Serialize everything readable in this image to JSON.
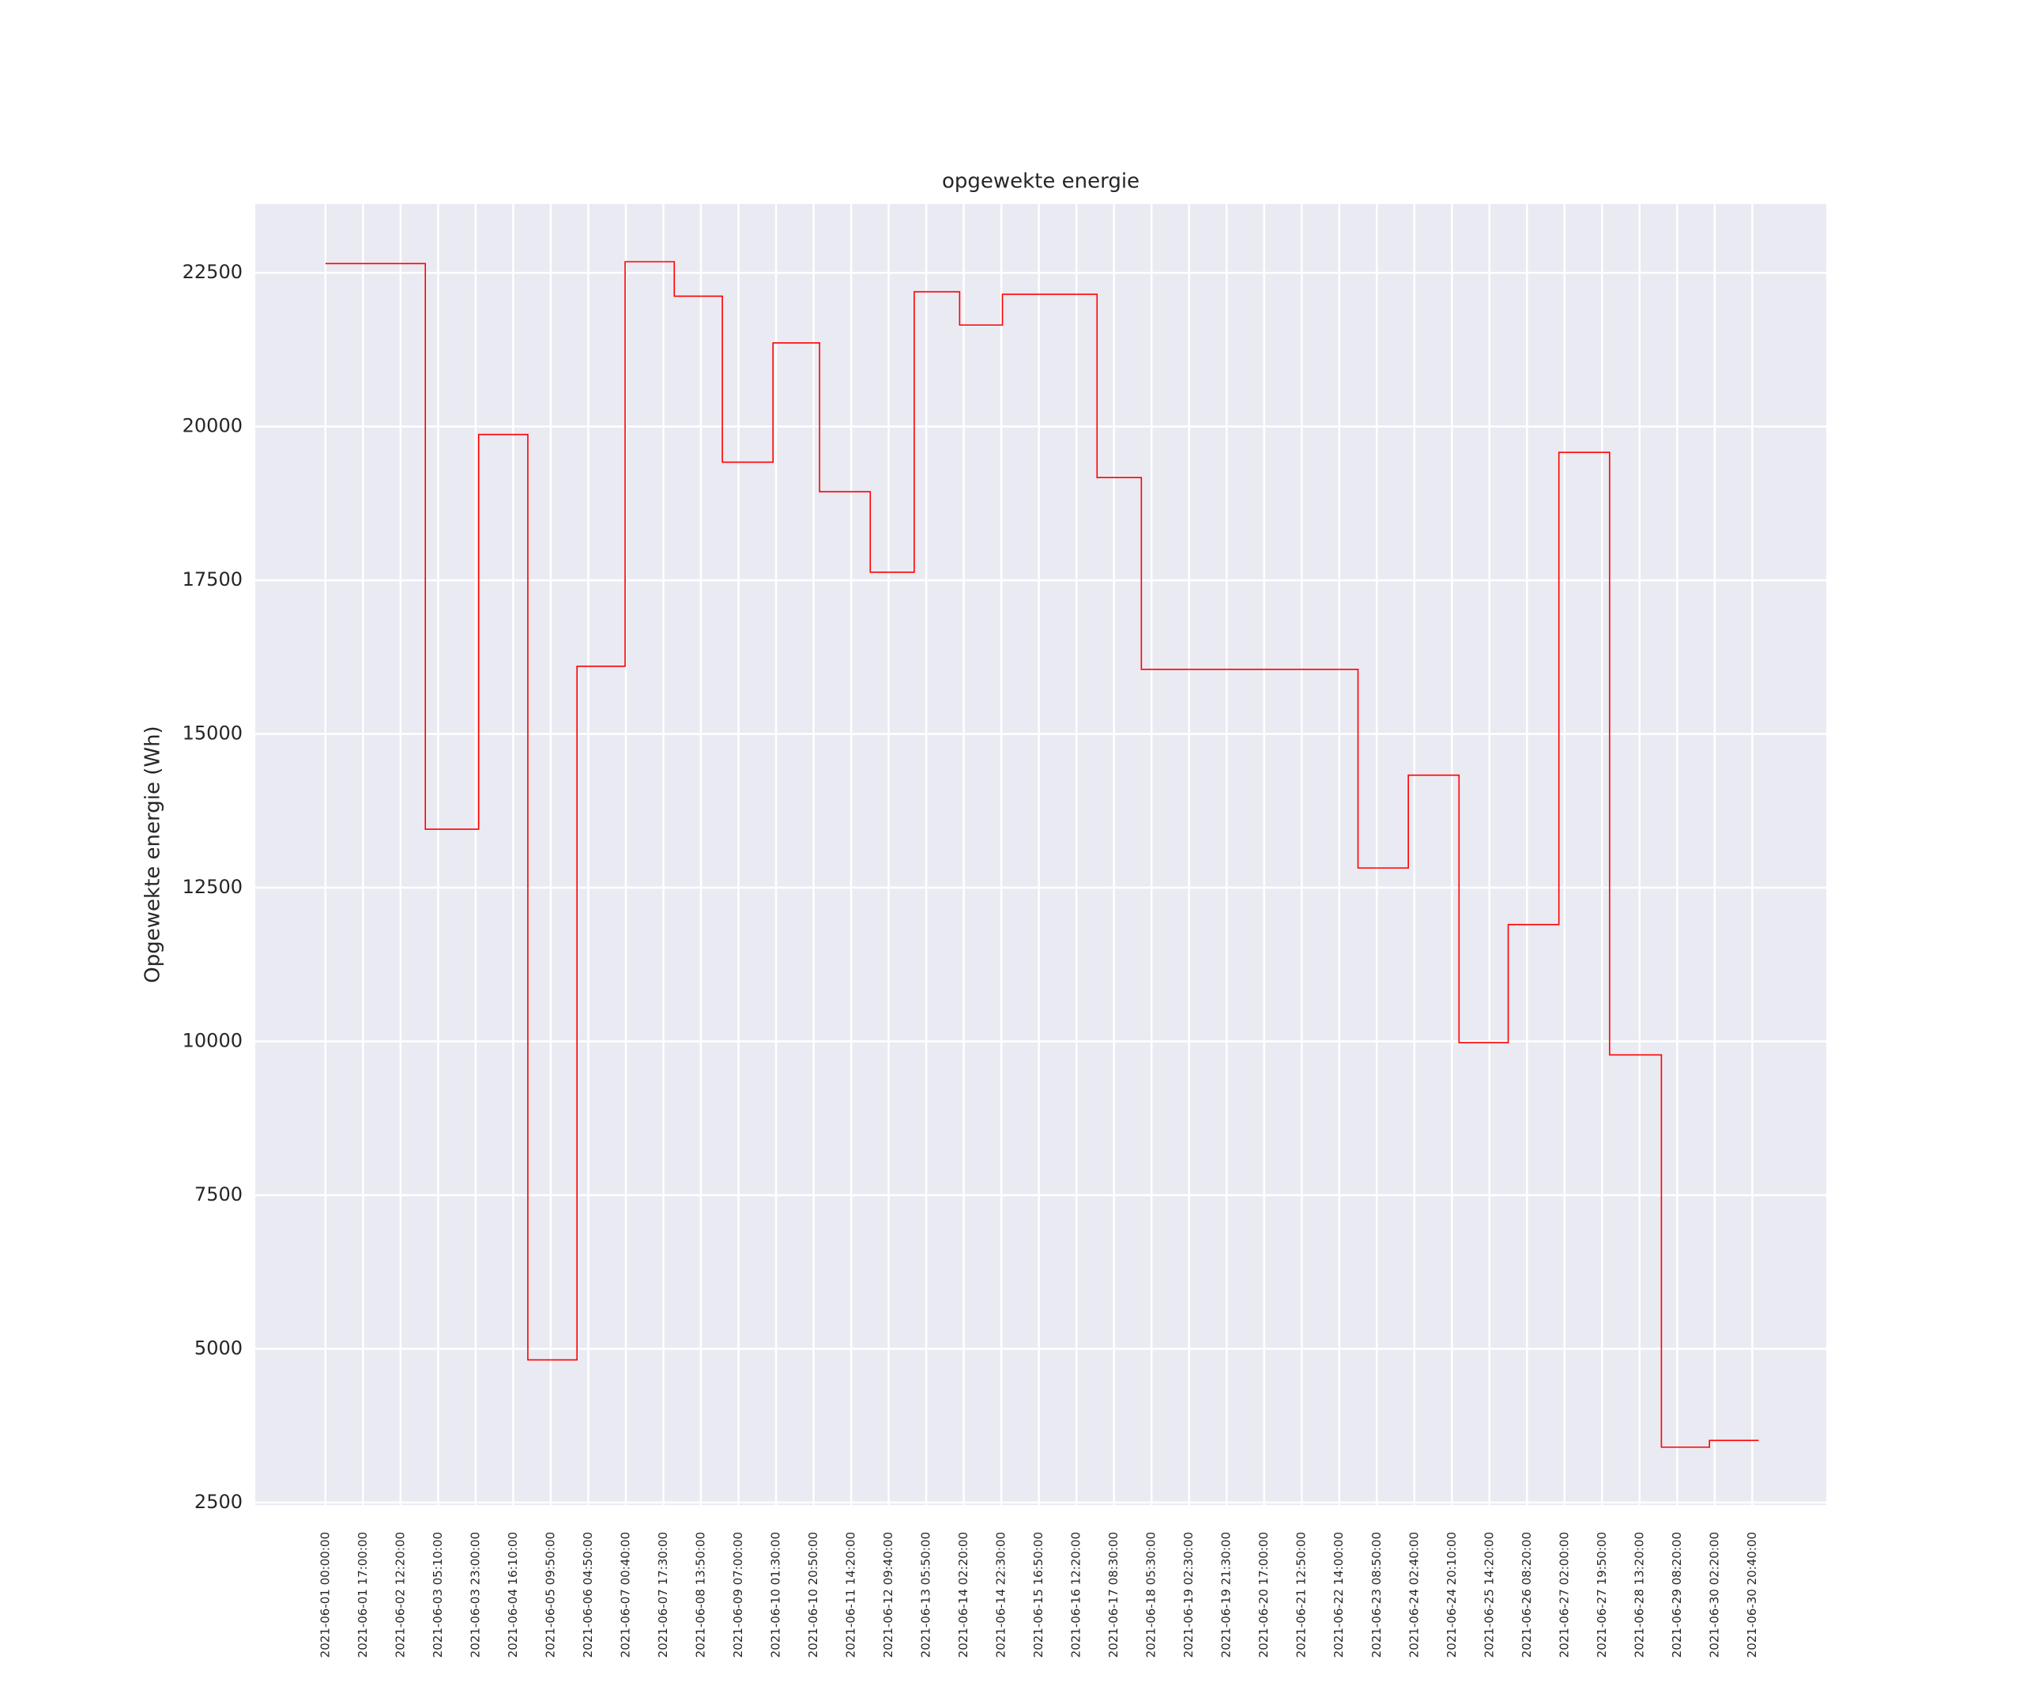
{
  "chart_data": {
    "type": "line",
    "step": "post",
    "title": "opgewekte energie",
    "ylabel": "Opgewekte energie (Wh)",
    "series": [
      {
        "name": "opgewekte energie",
        "color": "#ff0000",
        "x": [
          0,
          2.66,
          4.08,
          5.39,
          6.7,
          7.98,
          9.29,
          10.57,
          11.92,
          13.16,
          14.51,
          15.68,
          16.89,
          18.03,
          20.55,
          21.73,
          27.5,
          28.84,
          30.19,
          31.5,
          32.85,
          34.2,
          35.58,
          36.86,
          38.17
        ],
        "values": [
          22650,
          13450,
          19870,
          4820,
          16100,
          22680,
          22120,
          19420,
          21360,
          18940,
          17630,
          22190,
          21650,
          22150,
          19170,
          16050,
          12820,
          14330,
          9980,
          11900,
          19580,
          9780,
          3400,
          3510,
          3510
        ]
      }
    ],
    "xlim": [
      -1.87,
      39.97
    ],
    "xticks": [
      {
        "value": 0,
        "label": "2021-06-01 00:00:00"
      },
      {
        "value": 1,
        "label": "2021-06-01 17:00:00"
      },
      {
        "value": 2,
        "label": "2021-06-02 12:20:00"
      },
      {
        "value": 3,
        "label": "2021-06-03 05:10:00"
      },
      {
        "value": 4,
        "label": "2021-06-03 23:00:00"
      },
      {
        "value": 5,
        "label": "2021-06-04 16:10:00"
      },
      {
        "value": 6,
        "label": "2021-06-05 09:50:00"
      },
      {
        "value": 7,
        "label": "2021-06-06 04:50:00"
      },
      {
        "value": 8,
        "label": "2021-06-07 00:40:00"
      },
      {
        "value": 9,
        "label": "2021-06-07 17:30:00"
      },
      {
        "value": 10,
        "label": "2021-06-08 13:50:00"
      },
      {
        "value": 11,
        "label": "2021-06-09 07:00:00"
      },
      {
        "value": 12,
        "label": "2021-06-10 01:30:00"
      },
      {
        "value": 13,
        "label": "2021-06-10 20:50:00"
      },
      {
        "value": 14,
        "label": "2021-06-11 14:20:00"
      },
      {
        "value": 15,
        "label": "2021-06-12 09:40:00"
      },
      {
        "value": 16,
        "label": "2021-06-13 05:50:00"
      },
      {
        "value": 17,
        "label": "2021-06-14 02:20:00"
      },
      {
        "value": 18,
        "label": "2021-06-14 22:30:00"
      },
      {
        "value": 19,
        "label": "2021-06-15 16:50:00"
      },
      {
        "value": 20,
        "label": "2021-06-16 12:20:00"
      },
      {
        "value": 21,
        "label": "2021-06-17 08:30:00"
      },
      {
        "value": 22,
        "label": "2021-06-18 05:30:00"
      },
      {
        "value": 23,
        "label": "2021-06-19 02:30:00"
      },
      {
        "value": 24,
        "label": "2021-06-19 21:30:00"
      },
      {
        "value": 25,
        "label": "2021-06-20 17:00:00"
      },
      {
        "value": 26,
        "label": "2021-06-21 12:50:00"
      },
      {
        "value": 27,
        "label": "2021-06-22 14:00:00"
      },
      {
        "value": 28,
        "label": "2021-06-23 08:50:00"
      },
      {
        "value": 29,
        "label": "2021-06-24 02:40:00"
      },
      {
        "value": 30,
        "label": "2021-06-24 20:10:00"
      },
      {
        "value": 31,
        "label": "2021-06-25 14:20:00"
      },
      {
        "value": 32,
        "label": "2021-06-26 08:20:00"
      },
      {
        "value": 33,
        "label": "2021-06-27 02:00:00"
      },
      {
        "value": 34,
        "label": "2021-06-27 19:50:00"
      },
      {
        "value": 35,
        "label": "2021-06-28 13:20:00"
      },
      {
        "value": 36,
        "label": "2021-06-29 08:20:00"
      },
      {
        "value": 37,
        "label": "2021-06-30 02:20:00"
      },
      {
        "value": 38,
        "label": "2021-06-30 20:40:00"
      }
    ],
    "ylim": [
      2460,
      23620
    ],
    "yticks": [
      2500,
      5000,
      7500,
      10000,
      12500,
      15000,
      17500,
      20000,
      22500
    ],
    "grid": true
  }
}
